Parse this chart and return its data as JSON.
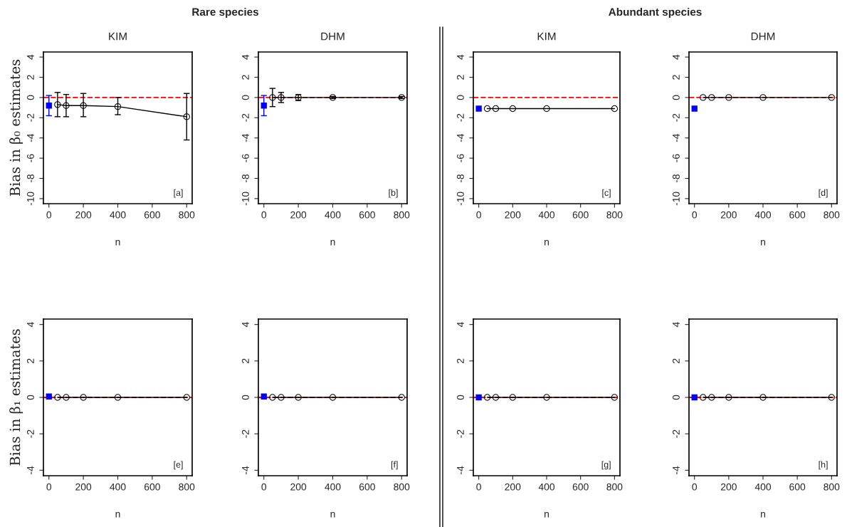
{
  "chart_data": [
    {
      "type": "line",
      "title": "KIM",
      "xlabel": "n",
      "ylabel": "Bias in β₀ estimates",
      "annotations": [
        "Rare species",
        "[a]"
      ],
      "xlim": [
        -32,
        832
      ],
      "xticks": [
        0,
        200,
        400,
        600,
        800
      ],
      "ylim": [
        -10.5,
        4.5
      ],
      "yticks": [
        -10,
        -8,
        -6,
        -4,
        -2,
        0,
        2,
        4
      ],
      "ref_lines": [
        {
          "axis": "y",
          "value": 0,
          "color": "#ff0000",
          "line_style": "dashed"
        }
      ],
      "series": [
        {
          "type": "scatter",
          "color": "#0000ff",
          "marker": "square",
          "x": [
            0
          ],
          "values": [
            -0.8
          ],
          "errors": [
            [
              -1.8,
              0.2
            ]
          ]
        },
        {
          "color": "#000000",
          "marker": "circle",
          "x": [
            50,
            100,
            200,
            400,
            800
          ],
          "values": [
            -0.7,
            -0.8,
            -0.8,
            -0.9,
            -1.9
          ],
          "errors": [
            [
              -1.9,
              0.5
            ],
            [
              -1.9,
              0.3
            ],
            [
              -1.9,
              0.4
            ],
            [
              -1.7,
              0.0
            ],
            [
              -4.2,
              0.4
            ]
          ]
        }
      ]
    },
    {
      "type": "line",
      "title": "DHM",
      "xlabel": "n",
      "annotations": [
        "[b]"
      ],
      "xlim": [
        -32,
        832
      ],
      "xticks": [
        0,
        200,
        400,
        600,
        800
      ],
      "ylim": [
        -10.5,
        4.5
      ],
      "yticks": [
        -10,
        -8,
        -6,
        -4,
        -2,
        0,
        2,
        4
      ],
      "ref_lines": [
        {
          "axis": "y",
          "value": 0,
          "color": "#ff0000",
          "line_style": "dashed"
        }
      ],
      "series": [
        {
          "type": "scatter",
          "color": "#0000ff",
          "marker": "square",
          "x": [
            0
          ],
          "values": [
            -0.8
          ],
          "errors": [
            [
              -1.8,
              0.2
            ]
          ]
        },
        {
          "color": "#000000",
          "marker": "circle",
          "x": [
            50,
            100,
            200,
            400,
            800
          ],
          "values": [
            0,
            0,
            0,
            0,
            0
          ],
          "errors": [
            [
              -0.9,
              0.9
            ],
            [
              -0.5,
              0.5
            ],
            [
              -0.3,
              0.3
            ],
            [
              -0.1,
              0.1
            ],
            [
              -0.1,
              0.1
            ]
          ]
        }
      ]
    },
    {
      "type": "line",
      "title": "KIM",
      "xlabel": "n",
      "annotations": [
        "Abundant species",
        "[c]"
      ],
      "xlim": [
        -32,
        832
      ],
      "xticks": [
        0,
        200,
        400,
        600,
        800
      ],
      "ylim": [
        -10.5,
        4.5
      ],
      "yticks": [
        -10,
        -8,
        -6,
        -4,
        -2,
        0,
        2,
        4
      ],
      "ref_lines": [
        {
          "axis": "y",
          "value": 0,
          "color": "#ff0000",
          "line_style": "dashed"
        }
      ],
      "series": [
        {
          "type": "scatter",
          "color": "#0000ff",
          "marker": "square",
          "x": [
            0
          ],
          "values": [
            -1.1
          ]
        },
        {
          "color": "#000000",
          "marker": "circle",
          "x": [
            50,
            100,
            200,
            400,
            800
          ],
          "values": [
            -1.1,
            -1.1,
            -1.1,
            -1.1,
            -1.1
          ]
        }
      ]
    },
    {
      "type": "line",
      "title": "DHM",
      "xlabel": "n",
      "annotations": [
        "[d]"
      ],
      "xlim": [
        -32,
        832
      ],
      "xticks": [
        0,
        200,
        400,
        600,
        800
      ],
      "ylim": [
        -10.5,
        4.5
      ],
      "yticks": [
        -10,
        -8,
        -6,
        -4,
        -2,
        0,
        2,
        4
      ],
      "ref_lines": [
        {
          "axis": "y",
          "value": 0,
          "color": "#ff0000",
          "line_style": "dashed"
        }
      ],
      "series": [
        {
          "type": "scatter",
          "color": "#0000ff",
          "marker": "square",
          "x": [
            0
          ],
          "values": [
            -1.1
          ]
        },
        {
          "type": "line",
          "color": "#000000",
          "marker": "circle",
          "x": [
            50,
            100,
            200,
            400,
            800
          ],
          "values": [
            0,
            0,
            0,
            0,
            0
          ]
        }
      ]
    },
    {
      "type": "line",
      "xlabel": "n",
      "ylabel": "Bias in β₁ estimates",
      "annotations": [
        "[e]"
      ],
      "xlim": [
        -32,
        832
      ],
      "xticks": [
        0,
        200,
        400,
        600,
        800
      ],
      "ylim": [
        -4.3,
        4.3
      ],
      "yticks": [
        -4,
        -2,
        0,
        2,
        4
      ],
      "ref_lines": [
        {
          "axis": "y",
          "value": 0,
          "color": "#ff0000",
          "line_style": "dashed"
        }
      ],
      "series": [
        {
          "type": "scatter",
          "color": "#0000ff",
          "marker": "square",
          "x": [
            0
          ],
          "values": [
            0.05
          ]
        },
        {
          "type": "line",
          "color": "#000000",
          "marker": "circle",
          "x": [
            50,
            100,
            200,
            400,
            800
          ],
          "values": [
            0,
            0,
            0,
            0,
            0
          ]
        }
      ]
    },
    {
      "type": "line",
      "xlabel": "n",
      "annotations": [
        "[f]"
      ],
      "xlim": [
        -32,
        832
      ],
      "xticks": [
        0,
        200,
        400,
        600,
        800
      ],
      "ylim": [
        -4.3,
        4.3
      ],
      "yticks": [
        -4,
        -2,
        0,
        2,
        4
      ],
      "ref_lines": [
        {
          "axis": "y",
          "value": 0,
          "color": "#ff0000",
          "line_style": "dashed"
        }
      ],
      "series": [
        {
          "type": "scatter",
          "color": "#0000ff",
          "marker": "square",
          "x": [
            0
          ],
          "values": [
            0.05
          ]
        },
        {
          "type": "line",
          "color": "#000000",
          "marker": "circle",
          "x": [
            50,
            100,
            200,
            400,
            800
          ],
          "values": [
            0,
            0,
            0,
            0,
            0
          ]
        }
      ]
    },
    {
      "type": "line",
      "xlabel": "n",
      "annotations": [
        "[g]"
      ],
      "xlim": [
        -32,
        832
      ],
      "xticks": [
        0,
        200,
        400,
        600,
        800
      ],
      "ylim": [
        -4.3,
        4.3
      ],
      "yticks": [
        -4,
        -2,
        0,
        2,
        4
      ],
      "ref_lines": [
        {
          "axis": "y",
          "value": 0,
          "color": "#ff0000",
          "line_style": "dashed"
        }
      ],
      "series": [
        {
          "type": "scatter",
          "color": "#0000ff",
          "marker": "square",
          "x": [
            0
          ],
          "values": [
            0
          ]
        },
        {
          "type": "line",
          "color": "#000000",
          "marker": "circle",
          "x": [
            50,
            100,
            200,
            400,
            800
          ],
          "values": [
            0,
            0,
            0,
            0,
            0
          ]
        }
      ]
    },
    {
      "type": "line",
      "xlabel": "n",
      "annotations": [
        "[h]"
      ],
      "xlim": [
        -32,
        832
      ],
      "xticks": [
        0,
        200,
        400,
        600,
        800
      ],
      "ylim": [
        -4.3,
        4.3
      ],
      "yticks": [
        -4,
        -2,
        0,
        2,
        4
      ],
      "ref_lines": [
        {
          "axis": "y",
          "value": 0,
          "color": "#ff0000",
          "line_style": "dashed"
        }
      ],
      "series": [
        {
          "type": "scatter",
          "color": "#0000ff",
          "marker": "square",
          "x": [
            0
          ],
          "values": [
            0
          ]
        },
        {
          "type": "line",
          "color": "#000000",
          "marker": "circle",
          "x": [
            50,
            100,
            200,
            400,
            800
          ],
          "values": [
            0,
            0,
            0,
            0,
            0
          ]
        }
      ]
    }
  ]
}
